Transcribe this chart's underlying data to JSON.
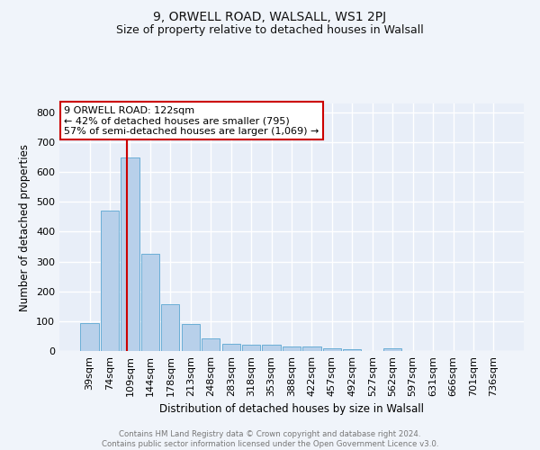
{
  "title1": "9, ORWELL ROAD, WALSALL, WS1 2PJ",
  "title2": "Size of property relative to detached houses in Walsall",
  "xlabel": "Distribution of detached houses by size in Walsall",
  "ylabel": "Number of detached properties",
  "bar_labels": [
    "39sqm",
    "74sqm",
    "109sqm",
    "144sqm",
    "178sqm",
    "213sqm",
    "248sqm",
    "283sqm",
    "318sqm",
    "353sqm",
    "388sqm",
    "422sqm",
    "457sqm",
    "492sqm",
    "527sqm",
    "562sqm",
    "597sqm",
    "631sqm",
    "666sqm",
    "701sqm",
    "736sqm"
  ],
  "bar_heights": [
    95,
    470,
    650,
    325,
    157,
    90,
    42,
    25,
    20,
    20,
    15,
    15,
    10,
    7,
    0,
    10,
    0,
    0,
    0,
    0,
    0
  ],
  "bar_color": "#b8d0ea",
  "bar_edge_color": "#6aaed6",
  "vline_x": 2,
  "vline_color": "#cc0000",
  "annotation_text": "9 ORWELL ROAD: 122sqm\n← 42% of detached houses are smaller (795)\n57% of semi-detached houses are larger (1,069) →",
  "annotation_box_color": "#ffffff",
  "annotation_box_edge": "#cc0000",
  "ylim": [
    0,
    830
  ],
  "yticks": [
    0,
    100,
    200,
    300,
    400,
    500,
    600,
    700,
    800
  ],
  "footer_text": "Contains HM Land Registry data © Crown copyright and database right 2024.\nContains public sector information licensed under the Open Government Licence v3.0.",
  "bg_color": "#f0f4fa",
  "plot_bg_color": "#e8eef8",
  "grid_color": "#ffffff",
  "title1_fontsize": 10,
  "title2_fontsize": 9
}
